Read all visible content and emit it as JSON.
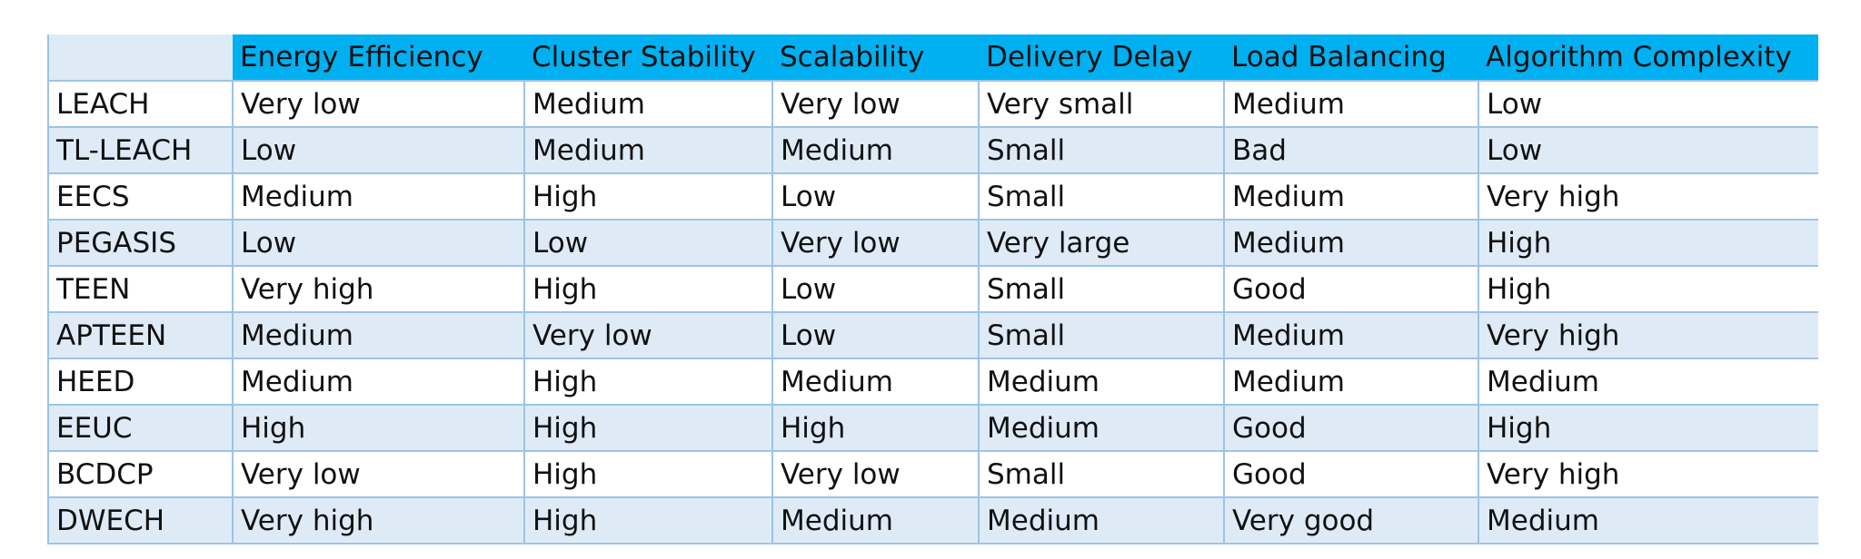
{
  "table": {
    "columns": [
      "",
      "Energy Efficiency",
      "Cluster Stability",
      "Scalability",
      "Delivery Delay",
      "Load Balancing",
      "Algorithm Complexity"
    ],
    "rows": [
      [
        "LEACH",
        "Very low",
        "Medium",
        "Very low",
        "Very small",
        "Medium",
        "Low"
      ],
      [
        "TL-LEACH",
        "Low",
        "Medium",
        "Medium",
        "Small",
        "Bad",
        "Low"
      ],
      [
        "EECS",
        "Medium",
        "High",
        "Low",
        "Small",
        "Medium",
        "Very high"
      ],
      [
        "PEGASIS",
        "Low",
        "Low",
        "Very low",
        "Very large",
        "Medium",
        "High"
      ],
      [
        "TEEN",
        "Very high",
        "High",
        "Low",
        "Small",
        "Good",
        "High"
      ],
      [
        "APTEEN",
        "Medium",
        "Very low",
        "Low",
        "Small",
        "Medium",
        "Very high"
      ],
      [
        "HEED",
        "Medium",
        "High",
        "Medium",
        "Medium",
        "Medium",
        "Medium"
      ],
      [
        "EEUC",
        "High",
        "High",
        "High",
        "Medium",
        "Good",
        "High"
      ],
      [
        "BCDCP",
        "Very low",
        "High",
        "Very low",
        "Small",
        "Good",
        "Very high"
      ],
      [
        "DWECH",
        "Very high",
        "High",
        "Medium",
        "Medium",
        "Very good",
        "Medium"
      ]
    ]
  },
  "colors": {
    "header_bg": "#00b0f0",
    "band_bg": "#deebf7",
    "border": "#9dc3e6"
  }
}
